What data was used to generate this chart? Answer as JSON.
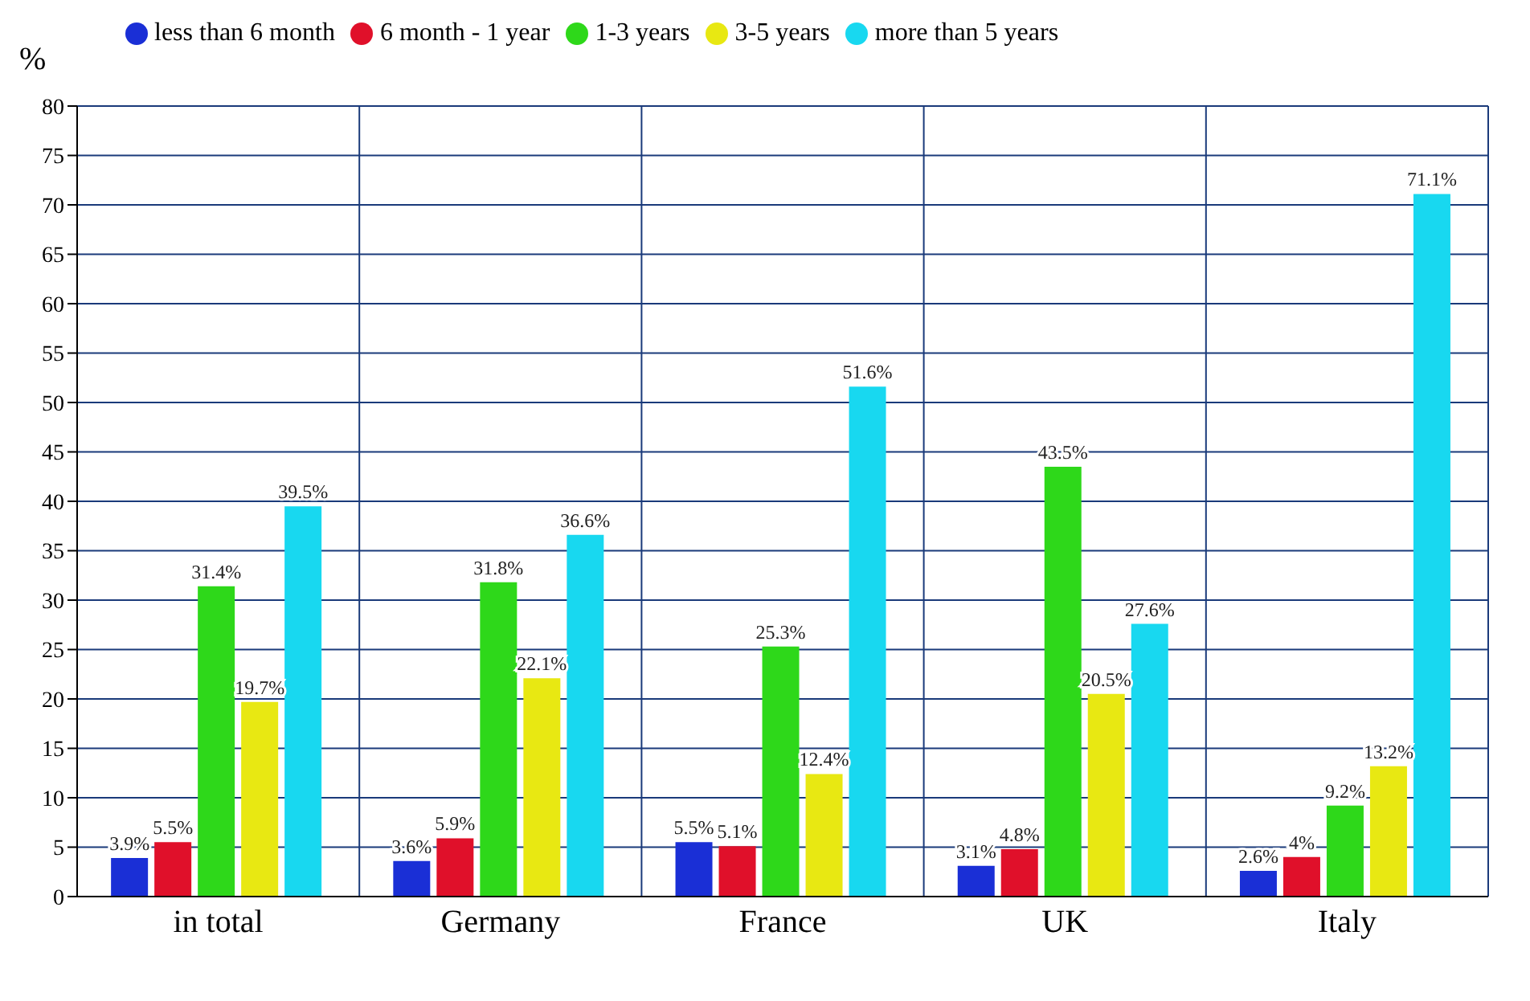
{
  "chart_data": {
    "type": "bar",
    "ylabel": "%",
    "categories": [
      "in total",
      "Germany",
      "France",
      "UK",
      "Italy"
    ],
    "series": [
      {
        "name": "less than 6 month",
        "color": "#1a2fd6",
        "values": [
          3.9,
          3.6,
          5.5,
          3.1,
          2.6
        ],
        "value_labels": [
          "3.9%",
          "3.6%",
          "5.5%",
          "3.1%",
          "2.6%"
        ]
      },
      {
        "name": "6 month - 1 year",
        "color": "#e0102a",
        "values": [
          5.5,
          5.9,
          5.1,
          4.8,
          4
        ],
        "value_labels": [
          "5.5%",
          "5.9%",
          "5.1%",
          "4.8%",
          "4%"
        ]
      },
      {
        "name": "1-3 years",
        "color": "#2ed81a",
        "values": [
          31.4,
          31.8,
          25.3,
          43.5,
          9.2
        ],
        "value_labels": [
          "31.4%",
          "31.8%",
          "25.3%",
          "43.5%",
          "9.2%"
        ]
      },
      {
        "name": "3-5 years",
        "color": "#e8e812",
        "values": [
          19.7,
          22.1,
          12.4,
          20.5,
          13.2
        ],
        "value_labels": [
          "19.7%",
          "22.1%",
          "12.4%",
          "20.5%",
          "13.2%"
        ]
      },
      {
        "name": "more than 5 years",
        "color": "#18d8f0",
        "values": [
          39.5,
          36.6,
          51.6,
          27.6,
          71.1
        ],
        "value_labels": [
          "39.5%",
          "36.6%",
          "51.6%",
          "27.6%",
          "71.1%"
        ]
      }
    ],
    "ylim": [
      0,
      80
    ],
    "yticks": [
      0,
      5,
      10,
      15,
      20,
      25,
      30,
      35,
      40,
      45,
      50,
      55,
      60,
      65,
      70,
      75,
      80
    ],
    "grid": true,
    "legend": "top"
  }
}
